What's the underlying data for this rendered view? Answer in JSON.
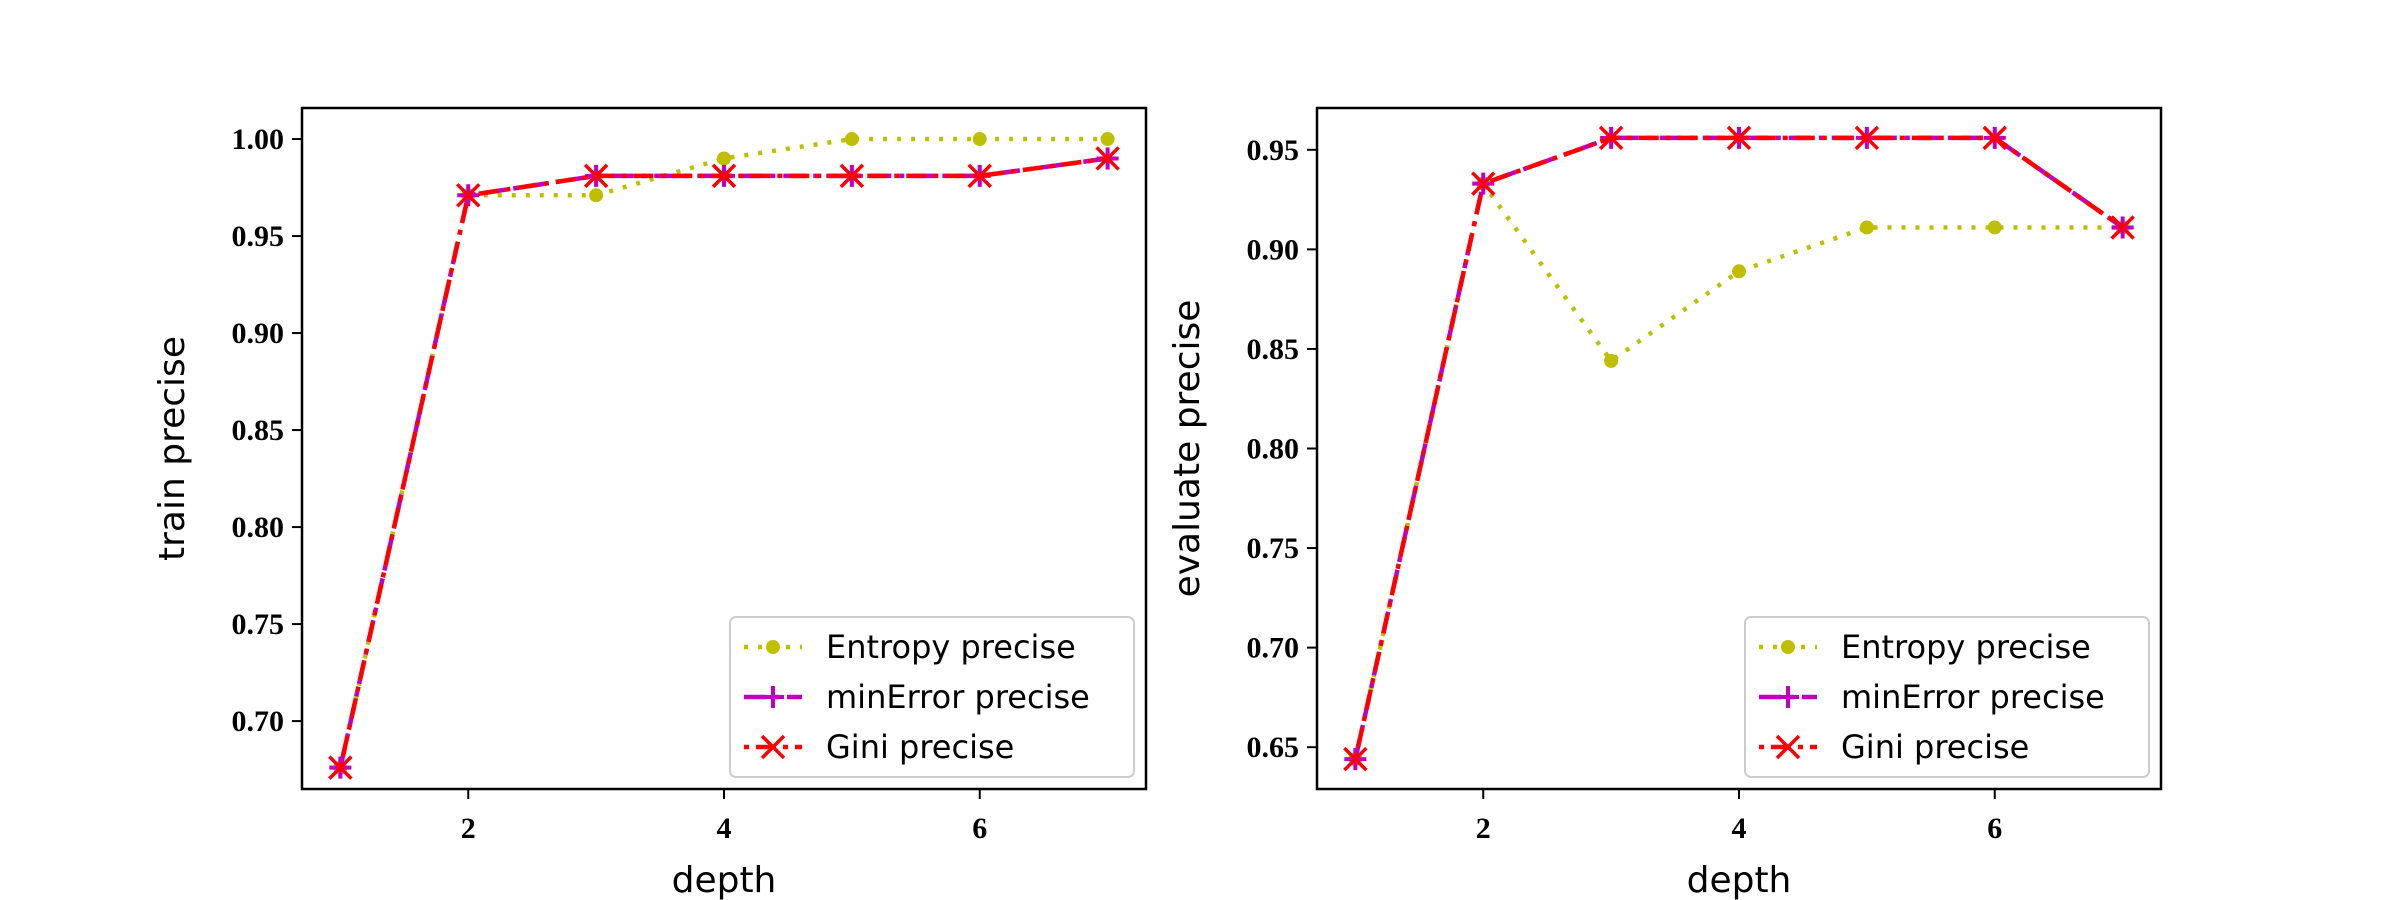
{
  "chart_data": [
    {
      "type": "line",
      "xlabel": "depth",
      "ylabel": "train precise",
      "xlim": [
        0.7,
        7.3
      ],
      "ylim": [
        0.665,
        1.016
      ],
      "xticks": [
        2,
        4,
        6
      ],
      "xtick_labels": [
        "2",
        "4",
        "6"
      ],
      "yticks": [
        0.7,
        0.75,
        0.8,
        0.85,
        0.9,
        0.95,
        1.0
      ],
      "ytick_labels": [
        "0.70",
        "0.75",
        "0.80",
        "0.85",
        "0.90",
        "0.95",
        "1.00"
      ],
      "grid": false,
      "legend_position": "lower-right",
      "x": [
        1,
        2,
        3,
        4,
        5,
        6,
        7
      ],
      "series": [
        {
          "name": "Entropy precise",
          "values": [
            0.676,
            0.971,
            0.971,
            0.99,
            1.0,
            1.0,
            1.0
          ],
          "color": "#bfbf00",
          "style": "dotted",
          "marker": "dot"
        },
        {
          "name": "minError precise",
          "values": [
            0.676,
            0.971,
            0.981,
            0.981,
            0.981,
            0.981,
            0.99
          ],
          "color": "#bf00bf",
          "style": "dashdot",
          "marker": "plus"
        },
        {
          "name": "Gini precise",
          "values": [
            0.676,
            0.971,
            0.981,
            0.981,
            0.981,
            0.981,
            0.99
          ],
          "color": "#ff0000",
          "style": "dotted-dashdot",
          "marker": "x"
        }
      ]
    },
    {
      "type": "line",
      "xlabel": "depth",
      "ylabel": "evaluate precise",
      "xlim": [
        0.7,
        7.3
      ],
      "ylim": [
        0.629,
        0.971
      ],
      "xticks": [
        2,
        4,
        6
      ],
      "xtick_labels": [
        "2",
        "4",
        "6"
      ],
      "yticks": [
        0.65,
        0.7,
        0.75,
        0.8,
        0.85,
        0.9,
        0.95
      ],
      "ytick_labels": [
        "0.65",
        "0.70",
        "0.75",
        "0.80",
        "0.85",
        "0.90",
        "0.95"
      ],
      "grid": false,
      "legend_position": "lower-right",
      "x": [
        1,
        2,
        3,
        4,
        5,
        6,
        7
      ],
      "series": [
        {
          "name": "Entropy precise",
          "values": [
            0.644,
            0.933,
            0.844,
            0.889,
            0.911,
            0.911,
            0.911
          ],
          "color": "#bfbf00",
          "style": "dotted",
          "marker": "dot"
        },
        {
          "name": "minError precise",
          "values": [
            0.644,
            0.933,
            0.956,
            0.956,
            0.956,
            0.956,
            0.911
          ],
          "color": "#bf00bf",
          "style": "dashdot",
          "marker": "plus"
        },
        {
          "name": "Gini precise",
          "values": [
            0.644,
            0.933,
            0.956,
            0.956,
            0.956,
            0.956,
            0.911
          ],
          "color": "#ff0000",
          "style": "dotted-dashdot",
          "marker": "x"
        }
      ]
    }
  ]
}
